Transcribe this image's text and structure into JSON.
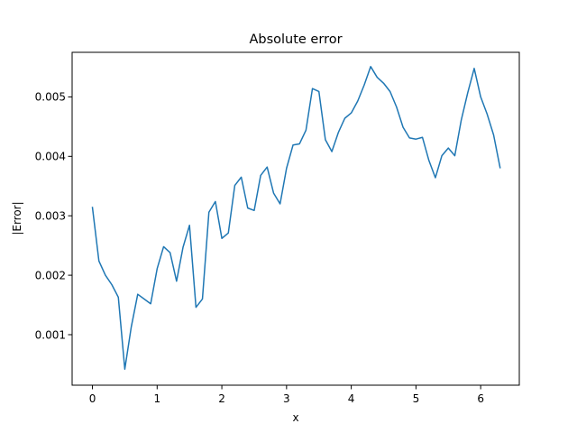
{
  "chart_data": {
    "type": "line",
    "title": "Absolute error",
    "xlabel": "x",
    "ylabel": "|Error|",
    "xlim": [
      -0.314,
      6.597
    ],
    "ylim": [
      0.00015,
      0.00575
    ],
    "grid": false,
    "line_color": "#1f77b4",
    "x_ticks": [
      {
        "value": 0,
        "label": "0"
      },
      {
        "value": 1,
        "label": "1"
      },
      {
        "value": 2,
        "label": "2"
      },
      {
        "value": 3,
        "label": "3"
      },
      {
        "value": 4,
        "label": "4"
      },
      {
        "value": 5,
        "label": "5"
      },
      {
        "value": 6,
        "label": "6"
      }
    ],
    "y_ticks": [
      {
        "value": 0.001,
        "label": "0.001"
      },
      {
        "value": 0.002,
        "label": "0.002"
      },
      {
        "value": 0.003,
        "label": "0.003"
      },
      {
        "value": 0.004,
        "label": "0.004"
      },
      {
        "value": 0.005,
        "label": "0.005"
      }
    ],
    "series": [
      {
        "x": [
          0,
          0.1,
          0.2,
          0.3,
          0.4,
          0.5,
          0.6,
          0.7,
          0.8,
          0.9,
          1.0,
          1.1,
          1.2,
          1.3,
          1.4,
          1.5,
          1.6,
          1.7,
          1.8,
          1.9,
          2.0,
          2.1,
          2.2,
          2.3,
          2.4,
          2.5,
          2.6,
          2.7,
          2.8,
          2.9,
          3.0,
          3.1,
          3.2,
          3.3,
          3.4,
          3.5,
          3.6,
          3.7,
          3.8,
          3.9,
          4.0,
          4.1,
          4.2,
          4.3,
          4.4,
          4.5,
          4.6,
          4.7,
          4.8,
          4.9,
          5.0,
          5.1,
          5.2,
          5.3,
          5.4,
          5.5,
          5.6,
          5.7,
          5.8,
          5.9,
          6.0,
          6.1,
          6.2,
          6.3
        ],
        "y": [
          0.00314,
          0.00224,
          0.002,
          0.00184,
          0.00163,
          0.00042,
          0.00113,
          0.00168,
          0.0016,
          0.00152,
          0.00211,
          0.00248,
          0.00238,
          0.0019,
          0.00247,
          0.00284,
          0.00146,
          0.0016,
          0.00306,
          0.00324,
          0.00262,
          0.00271,
          0.00351,
          0.00365,
          0.00313,
          0.00309,
          0.00368,
          0.00382,
          0.00338,
          0.0032,
          0.0038,
          0.00419,
          0.00421,
          0.00444,
          0.00514,
          0.00509,
          0.00428,
          0.00408,
          0.0044,
          0.00464,
          0.00473,
          0.00493,
          0.0052,
          0.00551,
          0.00533,
          0.00523,
          0.00509,
          0.00483,
          0.00449,
          0.00431,
          0.00429,
          0.00432,
          0.00393,
          0.00364,
          0.00401,
          0.00414,
          0.00401,
          0.00461,
          0.00507,
          0.00548,
          0.005,
          0.00471,
          0.00436,
          0.00381
        ]
      }
    ]
  }
}
